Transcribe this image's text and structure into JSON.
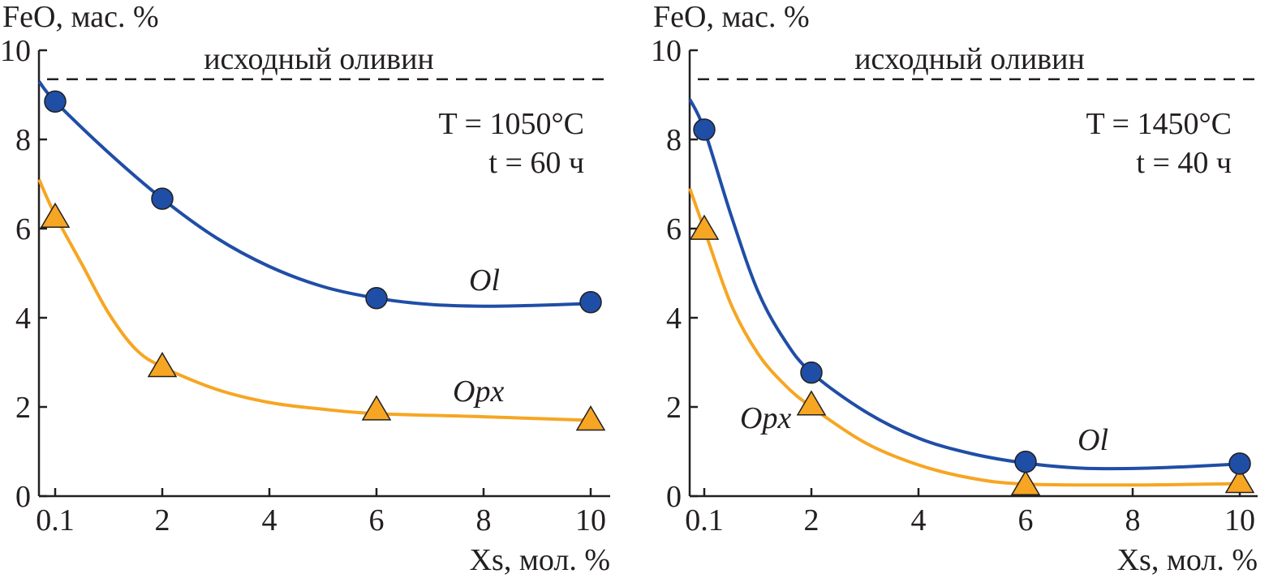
{
  "chart_data": [
    {
      "type": "line",
      "ylabel": "FeO, мас. %",
      "xlabel": "Xs, мол. %",
      "xticks": [
        "0.1",
        "2",
        "4",
        "6",
        "8",
        "10"
      ],
      "xtick_values": [
        0.1,
        2,
        4,
        6,
        8,
        10
      ],
      "yticks": [
        "0",
        "2",
        "4",
        "6",
        "8",
        "10"
      ],
      "ylim": [
        0,
        10
      ],
      "reference_line": {
        "label": "исходный оливин",
        "value": 9.35,
        "style": "dashed"
      },
      "conditions": {
        "T": "T = 1050°C",
        "t": "t = 60 ч"
      },
      "series": [
        {
          "name": "Ol",
          "marker": "circle",
          "color": "#1f4ea6",
          "x": [
            0.1,
            2,
            6,
            10
          ],
          "values": [
            8.85,
            6.67,
            4.44,
            4.35
          ],
          "curve": [
            [
              -0.3,
              9.3
            ],
            [
              0,
              8.85
            ],
            [
              1,
              7.7
            ],
            [
              2,
              6.67
            ],
            [
              3,
              5.8
            ],
            [
              4,
              5.15
            ],
            [
              5,
              4.7
            ],
            [
              6,
              4.44
            ],
            [
              7,
              4.3
            ],
            [
              8,
              4.26
            ],
            [
              9,
              4.28
            ],
            [
              10,
              4.32
            ]
          ]
        },
        {
          "name": "Opx",
          "marker": "triangle",
          "color": "#f6a623",
          "x": [
            0.1,
            2,
            6,
            10
          ],
          "values": [
            6.25,
            2.9,
            1.93,
            1.7
          ],
          "curve": [
            [
              -0.3,
              7.1
            ],
            [
              0,
              6.3
            ],
            [
              0.5,
              5.2
            ],
            [
              1,
              4.1
            ],
            [
              1.5,
              3.3
            ],
            [
              2,
              2.9
            ],
            [
              3,
              2.4
            ],
            [
              4,
              2.1
            ],
            [
              5,
              1.95
            ],
            [
              6,
              1.85
            ],
            [
              8,
              1.78
            ],
            [
              10,
              1.7
            ]
          ]
        }
      ]
    },
    {
      "type": "line",
      "ylabel": "FeO, мас. %",
      "xlabel": "Xs, мол. %",
      "xticks": [
        "0.1",
        "2",
        "4",
        "6",
        "8",
        "10"
      ],
      "xtick_values": [
        0.1,
        2,
        4,
        6,
        8,
        10
      ],
      "yticks": [
        "0",
        "2",
        "4",
        "6",
        "8",
        "10"
      ],
      "ylim": [
        0,
        10
      ],
      "reference_line": {
        "label": "исходный оливин",
        "value": 9.35,
        "style": "dashed"
      },
      "conditions": {
        "T": "T = 1450°C",
        "t": "t = 40 ч"
      },
      "series": [
        {
          "name": "Ol",
          "marker": "circle",
          "color": "#1f4ea6",
          "x": [
            0.1,
            2,
            6,
            10
          ],
          "values": [
            8.22,
            2.77,
            0.77,
            0.73
          ],
          "curve": [
            [
              -0.27,
              8.9
            ],
            [
              0,
              8.22
            ],
            [
              0.5,
              6.3
            ],
            [
              1,
              4.6
            ],
            [
              1.5,
              3.5
            ],
            [
              2,
              2.77
            ],
            [
              3,
              1.9
            ],
            [
              4,
              1.3
            ],
            [
              5,
              0.95
            ],
            [
              6,
              0.74
            ],
            [
              7,
              0.63
            ],
            [
              8,
              0.62
            ],
            [
              9,
              0.66
            ],
            [
              10,
              0.72
            ]
          ]
        },
        {
          "name": "Opx",
          "marker": "triangle",
          "color": "#f6a623",
          "x": [
            0.1,
            2,
            6,
            10
          ],
          "values": [
            5.98,
            2.04,
            0.25,
            0.3
          ],
          "curve": [
            [
              -0.27,
              6.9
            ],
            [
              0,
              5.98
            ],
            [
              0.5,
              4.3
            ],
            [
              1,
              3.2
            ],
            [
              1.5,
              2.5
            ],
            [
              2,
              2.0
            ],
            [
              3,
              1.2
            ],
            [
              4,
              0.7
            ],
            [
              5,
              0.4
            ],
            [
              6,
              0.27
            ],
            [
              8,
              0.25
            ],
            [
              10,
              0.28
            ]
          ]
        }
      ]
    }
  ]
}
